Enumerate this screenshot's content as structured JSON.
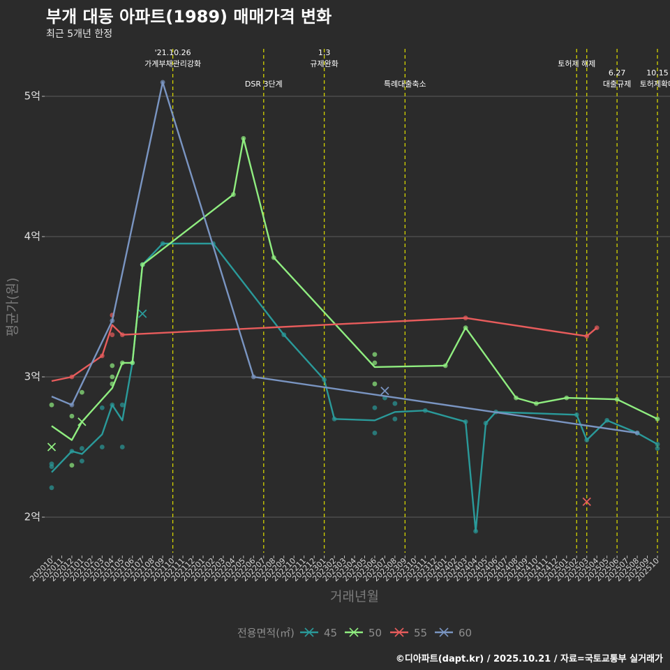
{
  "title": "부개 대동 아파트(1989) 매매가격 변화",
  "subtitle": "최근 5개년 한정",
  "caption": "©디아파트(dapt.kr) / 2025.10.21 / 자료=국토교통부 실거래가",
  "colors": {
    "background": "#2b2b2b",
    "grid": "#5c5c5c",
    "event_line": "#d4d400",
    "s45": "#2a9a9a",
    "s50": "#90ee80",
    "s55": "#e85c5c",
    "s60": "#7a95c2"
  },
  "chart_data": {
    "type": "line",
    "title": "부개 대동 아파트(1989) 매매가격 변화",
    "xlabel": "거래년월",
    "ylabel": "평균가(원)",
    "ylim": [
      1.75,
      5.3
    ],
    "yticks": [
      {
        "value": 2,
        "label": "2억"
      },
      {
        "value": 3,
        "label": "3억"
      },
      {
        "value": 4,
        "label": "4억"
      },
      {
        "value": 5,
        "label": "5억"
      }
    ],
    "categories": [
      "202010",
      "202011",
      "202012",
      "202101",
      "202102",
      "202103",
      "202104",
      "202105",
      "202106",
      "202107",
      "202108",
      "202109",
      "202110",
      "202111",
      "202112",
      "202201",
      "202202",
      "202203",
      "202204",
      "202205",
      "202206",
      "202207",
      "202208",
      "202209",
      "202210",
      "202211",
      "202212",
      "202301",
      "202302",
      "202303",
      "202304",
      "202305",
      "202306",
      "202307",
      "202308",
      "202309",
      "202310",
      "202311",
      "202312",
      "202401",
      "202402",
      "202403",
      "202404",
      "202405",
      "202406",
      "202407",
      "202408",
      "202409",
      "202410",
      "202411",
      "202412",
      "202501",
      "202502",
      "202503",
      "202504",
      "202505",
      "202506",
      "202507",
      "202508",
      "202509",
      "202510"
    ],
    "legend_title": "전용면적(㎡)",
    "events": [
      {
        "x": 12.0,
        "label": [
          "'21.10.26",
          "가계부채관리강화"
        ],
        "row": 0
      },
      {
        "x": 21.0,
        "label": [
          "DSR 3단계"
        ],
        "row": 1
      },
      {
        "x": 27.0,
        "label": [
          "1.3",
          "규제완화"
        ],
        "row": 0
      },
      {
        "x": 35.0,
        "label": [
          "특례대출축소"
        ],
        "row": 1
      },
      {
        "x": 52.0,
        "label": [
          "토허제 해제"
        ],
        "row": 0
      },
      {
        "x": 53.0,
        "label": [],
        "row": 0
      },
      {
        "x": 56.0,
        "label": [
          "6.27",
          "대출규제"
        ],
        "row": 1
      },
      {
        "x": 60.0,
        "label": [
          "10.15",
          "토허제확대"
        ],
        "row": 1
      }
    ],
    "series": [
      {
        "name": "45",
        "color": "#2a9a9a",
        "line": [
          [
            0,
            2.32
          ],
          [
            2,
            2.47
          ],
          [
            3,
            2.45
          ],
          [
            5,
            2.59
          ],
          [
            6,
            2.8
          ],
          [
            7,
            2.69
          ],
          [
            8,
            3.1
          ],
          [
            9,
            3.8
          ],
          [
            11,
            3.95
          ],
          [
            16,
            3.95
          ],
          [
            23,
            3.3
          ],
          [
            27,
            2.98
          ],
          [
            28,
            2.7
          ],
          [
            32,
            2.69
          ],
          [
            33,
            2.72
          ],
          [
            34,
            2.75
          ],
          [
            37,
            2.76
          ],
          [
            41,
            2.68
          ],
          [
            42,
            1.9
          ],
          [
            43,
            2.67
          ],
          [
            44,
            2.75
          ],
          [
            52,
            2.73
          ],
          [
            53,
            2.55
          ],
          [
            55,
            2.69
          ],
          [
            58,
            2.6
          ],
          [
            60,
            2.52
          ]
        ],
        "points": [
          [
            0,
            2.38
          ],
          [
            0,
            2.36
          ],
          [
            0,
            2.21
          ],
          [
            2,
            2.47
          ],
          [
            3,
            2.49
          ],
          [
            3,
            2.4
          ],
          [
            5,
            2.5
          ],
          [
            5,
            2.78
          ],
          [
            6,
            2.8
          ],
          [
            7,
            2.8
          ],
          [
            7,
            2.5
          ],
          [
            8,
            3.1
          ],
          [
            9,
            3.8
          ],
          [
            11,
            3.95
          ],
          [
            16,
            3.95
          ],
          [
            23,
            3.3
          ],
          [
            27,
            2.98
          ],
          [
            28,
            2.7
          ],
          [
            32,
            2.6
          ],
          [
            32,
            2.78
          ],
          [
            33,
            2.85
          ],
          [
            34,
            2.7
          ],
          [
            34,
            2.81
          ],
          [
            37,
            2.76
          ],
          [
            41,
            2.68
          ],
          [
            42,
            1.9
          ],
          [
            43,
            2.67
          ],
          [
            44,
            2.75
          ],
          [
            52,
            2.73
          ],
          [
            53,
            2.55
          ],
          [
            55,
            2.69
          ],
          [
            58,
            2.6
          ],
          [
            60,
            2.52
          ],
          [
            60,
            2.49
          ]
        ],
        "crosses": [
          [
            9,
            3.45
          ]
        ]
      },
      {
        "name": "50",
        "color": "#90ee80",
        "line": [
          [
            0,
            2.65
          ],
          [
            2,
            2.55
          ],
          [
            3,
            2.68
          ],
          [
            6,
            2.92
          ],
          [
            7,
            3.1
          ],
          [
            8,
            3.1
          ],
          [
            9,
            3.8
          ],
          [
            18,
            4.3
          ],
          [
            19,
            4.7
          ],
          [
            22,
            3.85
          ],
          [
            32,
            3.07
          ],
          [
            39,
            3.08
          ],
          [
            41,
            3.35
          ],
          [
            46,
            2.85
          ],
          [
            48,
            2.81
          ],
          [
            51,
            2.85
          ],
          [
            56,
            2.84
          ],
          [
            60,
            2.7
          ]
        ],
        "points": [
          [
            0,
            2.8
          ],
          [
            2,
            2.72
          ],
          [
            2,
            2.37
          ],
          [
            3,
            2.89
          ],
          [
            6,
            2.95
          ],
          [
            6,
            3.0
          ],
          [
            6,
            3.08
          ],
          [
            7,
            3.1
          ],
          [
            8,
            3.1
          ],
          [
            9,
            3.8
          ],
          [
            18,
            4.3
          ],
          [
            19,
            4.7
          ],
          [
            22,
            3.85
          ],
          [
            32,
            3.16
          ],
          [
            32,
            3.1
          ],
          [
            32,
            2.95
          ],
          [
            39,
            3.08
          ],
          [
            41,
            3.35
          ],
          [
            46,
            2.85
          ],
          [
            48,
            2.81
          ],
          [
            51,
            2.85
          ],
          [
            56,
            2.84
          ],
          [
            60,
            2.7
          ]
        ],
        "crosses": [
          [
            0,
            2.5
          ],
          [
            3,
            2.68
          ]
        ]
      },
      {
        "name": "55",
        "color": "#e85c5c",
        "line": [
          [
            0,
            2.97
          ],
          [
            2,
            3.0
          ],
          [
            5,
            3.15
          ],
          [
            6,
            3.37
          ],
          [
            7,
            3.3
          ],
          [
            41,
            3.42
          ],
          [
            53,
            3.29
          ],
          [
            54,
            3.35
          ]
        ],
        "points": [
          [
            2,
            3.0
          ],
          [
            5,
            3.15
          ],
          [
            6,
            3.3
          ],
          [
            6,
            3.44
          ],
          [
            7,
            3.3
          ],
          [
            41,
            3.42
          ],
          [
            53,
            3.29
          ],
          [
            54,
            3.35
          ]
        ],
        "crosses": [
          [
            53,
            2.11
          ]
        ]
      },
      {
        "name": "60",
        "color": "#7a95c2",
        "line": [
          [
            0,
            2.86
          ],
          [
            2,
            2.8
          ],
          [
            6,
            3.4
          ],
          [
            11,
            5.1
          ],
          [
            20,
            3.0
          ],
          [
            58,
            2.6
          ]
        ],
        "points": [
          [
            2,
            2.8
          ],
          [
            6,
            3.4
          ],
          [
            11,
            5.1
          ],
          [
            20,
            3.0
          ],
          [
            58,
            2.6
          ]
        ],
        "crosses": [
          [
            33,
            2.9
          ]
        ]
      }
    ]
  }
}
